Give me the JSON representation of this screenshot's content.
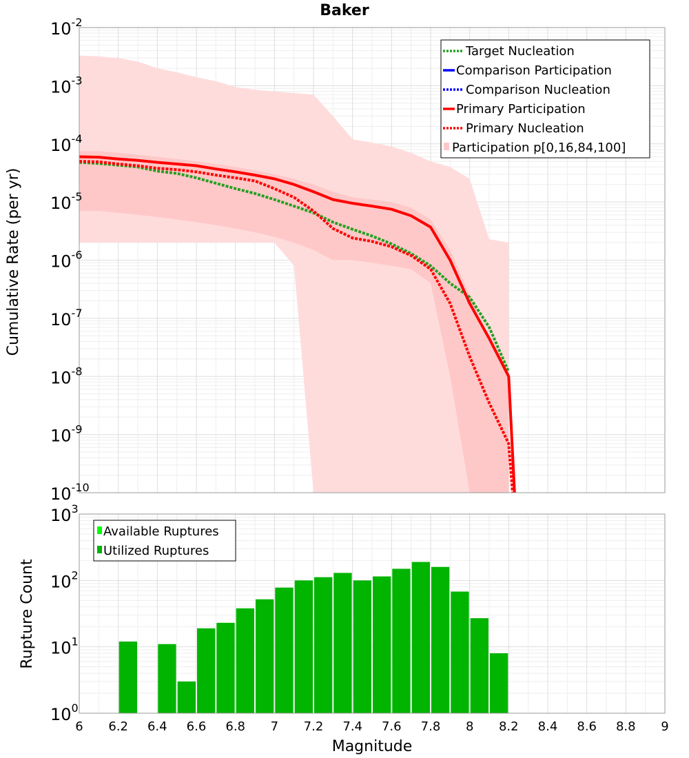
{
  "chart_data": [
    {
      "type": "line",
      "title": "Baker",
      "xlabel": "Magnitude",
      "ylabel": "Cumulative Rate (per yr)",
      "xlim": [
        6,
        9
      ],
      "ylim": [
        1e-10,
        0.01
      ],
      "yscale": "log",
      "grid": true,
      "legend_position": "top-right",
      "x_ticks": [
        "6",
        "6.2",
        "6.4",
        "6.6",
        "6.8",
        "7",
        "7.2",
        "7.4",
        "7.6",
        "7.8",
        "8",
        "8.2",
        "8.4",
        "8.6",
        "8.8",
        "9"
      ],
      "y_tick_exponents": [
        "-2",
        "-3",
        "-4",
        "-5",
        "-6",
        "-7",
        "-8",
        "-9",
        "-10"
      ],
      "y_tick_base": "10",
      "legend": [
        {
          "label": "Target Nucleation",
          "color": "#22a022",
          "style": "dotted"
        },
        {
          "label": "Comparison Participation",
          "color": "#0000ff",
          "style": "solid"
        },
        {
          "label": "Comparison Nucleation",
          "color": "#0000ff",
          "style": "dotted"
        },
        {
          "label": "Primary Participation",
          "color": "#ff0000",
          "style": "solid"
        },
        {
          "label": "Primary Nucleation",
          "color": "#ff0000",
          "style": "dotted"
        },
        {
          "label": "Participation p[0,16,84,100]",
          "color": "#ffc8c8",
          "style": "band"
        }
      ],
      "bands": [
        {
          "name": "p0-p100",
          "color": "#ffdcdc",
          "x": [
            6.0,
            6.1,
            6.2,
            6.3,
            6.4,
            6.5,
            6.6,
            6.7,
            6.8,
            6.9,
            7.0,
            7.1,
            7.2,
            7.3,
            7.4,
            7.5,
            7.6,
            7.7,
            7.8,
            7.9,
            8.0,
            8.1,
            8.2
          ],
          "upper": [
            0.0033,
            0.0032,
            0.003,
            0.0026,
            0.002,
            0.0017,
            0.0014,
            0.0012,
            0.00095,
            0.00085,
            0.0008,
            0.00075,
            0.0007,
            0.0003,
            0.00012,
            0.000105,
            9e-05,
            7e-05,
            5e-05,
            4e-05,
            2.5e-05,
            2.3e-06,
            2e-06
          ],
          "lower": [
            2e-06,
            2e-06,
            2e-06,
            2e-06,
            2e-06,
            2e-06,
            2e-06,
            2e-06,
            2e-06,
            2e-06,
            2e-06,
            8e-07,
            1e-10,
            1e-10,
            1e-10,
            1e-10,
            1e-10,
            1e-10,
            1e-10,
            1e-10,
            1e-10,
            1e-10,
            1e-10
          ]
        },
        {
          "name": "p16-p84",
          "color": "#ffc8c8",
          "x": [
            6.0,
            6.1,
            6.2,
            6.3,
            6.4,
            6.5,
            6.6,
            6.7,
            6.8,
            6.9,
            7.0,
            7.1,
            7.2,
            7.3,
            7.4,
            7.5,
            7.6,
            7.7,
            7.8,
            7.9,
            8.0,
            8.1,
            8.2
          ],
          "upper": [
            7.5e-05,
            7.5e-05,
            7e-05,
            6.5e-05,
            6e-05,
            5.5e-05,
            5e-05,
            4.5e-05,
            4e-05,
            3.5e-05,
            3e-05,
            2.5e-05,
            2e-05,
            1.5e-05,
            1.2e-05,
            1.1e-05,
            1e-05,
            8e-06,
            5e-06,
            1.5e-06,
            2.5e-07,
            4e-08,
            1e-08
          ],
          "lower": [
            7e-06,
            7e-06,
            6.5e-06,
            6e-06,
            5.5e-06,
            5e-06,
            4.5e-06,
            4e-06,
            3.5e-06,
            3e-06,
            2.5e-06,
            2e-06,
            1.5e-06,
            1e-06,
            1e-06,
            9e-07,
            8e-07,
            7e-07,
            4e-07,
            1e-08,
            1e-10,
            1e-10,
            1e-10
          ]
        }
      ],
      "series": [
        {
          "name": "Target Nucleation",
          "color": "#22a022",
          "style": "dotted",
          "x": [
            6.0,
            6.1,
            6.2,
            6.3,
            6.4,
            6.5,
            6.6,
            6.7,
            6.8,
            6.9,
            7.0,
            7.1,
            7.2,
            7.3,
            7.4,
            7.5,
            7.6,
            7.7,
            7.8,
            7.9,
            8.0,
            8.1,
            8.2
          ],
          "values": [
            4.8e-05,
            4.6e-05,
            4.3e-05,
            4e-05,
            3.4e-05,
            3.1e-05,
            2.6e-05,
            2.1e-05,
            1.7e-05,
            1.4e-05,
            1.1e-05,
            8.5e-06,
            6.5e-06,
            4.5e-06,
            3.4e-06,
            2.6e-06,
            1.9e-06,
            1.3e-06,
            8e-07,
            4e-07,
            2.3e-07,
            7e-08,
            1.2e-08
          ]
        },
        {
          "name": "Primary Participation",
          "color": "#ff0000",
          "style": "solid",
          "x": [
            6.0,
            6.1,
            6.2,
            6.3,
            6.4,
            6.5,
            6.6,
            6.7,
            6.8,
            6.9,
            7.0,
            7.1,
            7.2,
            7.3,
            7.4,
            7.5,
            7.6,
            7.7,
            7.8,
            7.9,
            8.0,
            8.1,
            8.2,
            8.23
          ],
          "values": [
            6e-05,
            5.9e-05,
            5.5e-05,
            5.2e-05,
            4.8e-05,
            4.5e-05,
            4.2e-05,
            3.7e-05,
            3.3e-05,
            2.9e-05,
            2.5e-05,
            2e-05,
            1.5e-05,
            1.1e-05,
            9.5e-06,
            8.5e-06,
            7.5e-06,
            5.8e-06,
            3.7e-06,
            1e-06,
            1.8e-07,
            4.5e-08,
            1e-08,
            1e-10
          ]
        },
        {
          "name": "Primary Nucleation",
          "color": "#ff0000",
          "style": "dotted",
          "x": [
            6.0,
            6.1,
            6.2,
            6.3,
            6.4,
            6.5,
            6.6,
            6.7,
            6.8,
            6.9,
            7.0,
            7.1,
            7.2,
            7.3,
            7.4,
            7.5,
            7.6,
            7.7,
            7.8,
            7.9,
            8.0,
            8.1,
            8.2,
            8.22
          ],
          "values": [
            5e-05,
            4.9e-05,
            4.5e-05,
            4.2e-05,
            3.8e-05,
            3.6e-05,
            3.3e-05,
            2.9e-05,
            2.6e-05,
            2.3e-05,
            1.7e-05,
            1.2e-05,
            7e-06,
            3.5e-06,
            2.4e-06,
            2.1e-06,
            1.7e-06,
            1.2e-06,
            7e-07,
            1.8e-07,
            2.2e-08,
            3.5e-09,
            7e-10,
            1e-10
          ]
        }
      ]
    },
    {
      "type": "bar",
      "title": "",
      "xlabel": "Magnitude",
      "ylabel": "Rupture Count",
      "xlim": [
        6,
        9
      ],
      "ylim": [
        1,
        1000
      ],
      "yscale": "log",
      "grid": true,
      "legend_position": "top-left",
      "y_tick_exponents": [
        "3",
        "2",
        "1",
        "0"
      ],
      "y_tick_base": "10",
      "legend": [
        {
          "label": "Available Ruptures",
          "color": "#00ff00"
        },
        {
          "label": "Utilized Ruptures",
          "color": "#00b400"
        }
      ],
      "bin_width": 0.1,
      "bin_starts": [
        6.2,
        6.4,
        6.5,
        6.6,
        6.7,
        6.8,
        6.9,
        7.0,
        7.1,
        7.2,
        7.3,
        7.4,
        7.5,
        7.6,
        7.7,
        7.8,
        7.9,
        8.0,
        8.1
      ],
      "series": [
        {
          "name": "Utilized Ruptures",
          "color": "#00b400",
          "values": [
            12,
            11,
            3,
            19,
            23,
            38,
            52,
            78,
            100,
            112,
            130,
            100,
            115,
            150,
            190,
            160,
            68,
            27,
            8
          ]
        }
      ]
    }
  ]
}
